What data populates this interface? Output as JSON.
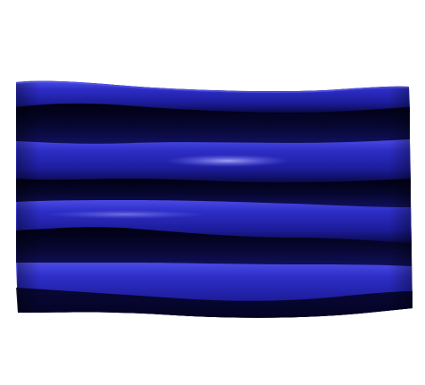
{
  "scene": {
    "subject": "wavy-panel",
    "colors": {
      "background": "#ffffff",
      "panel_base": "#1f1f9e",
      "panel_bright": "#3535d8",
      "panel_highlight": "#7a7aff",
      "panel_shadow": "#05052a",
      "panel_deep_shadow": "#000010"
    }
  }
}
